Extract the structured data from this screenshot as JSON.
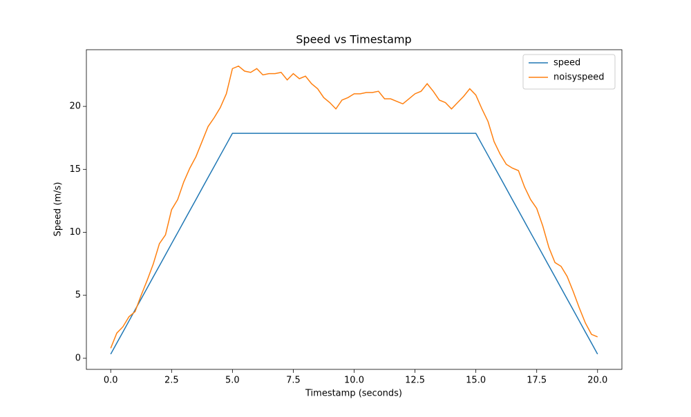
{
  "chart_data": {
    "type": "line",
    "title": "Speed vs Timestamp",
    "xlabel": "Timestamp (seconds)",
    "ylabel": "Speed (m/s)",
    "x": [
      0,
      0.25,
      0.5,
      0.75,
      1,
      1.25,
      1.5,
      1.75,
      2,
      2.25,
      2.5,
      2.75,
      3,
      3.25,
      3.5,
      3.75,
      4,
      4.25,
      4.5,
      4.75,
      5,
      5.25,
      5.5,
      5.75,
      6,
      6.25,
      6.5,
      6.75,
      7,
      7.25,
      7.5,
      7.75,
      8,
      8.25,
      8.5,
      8.75,
      9,
      9.25,
      9.5,
      9.75,
      10,
      10.25,
      10.5,
      10.75,
      11,
      11.25,
      11.5,
      11.75,
      12,
      12.25,
      12.5,
      12.75,
      13,
      13.25,
      13.5,
      13.75,
      14,
      14.25,
      14.5,
      14.75,
      15,
      15.25,
      15.5,
      15.75,
      16,
      16.25,
      16.5,
      16.75,
      17,
      17.25,
      17.5,
      17.75,
      18,
      18.25,
      18.5,
      18.75,
      19,
      19.25,
      19.5,
      19.75,
      20
    ],
    "series": [
      {
        "name": "speed",
        "color": "#1f77b4",
        "values": [
          0.33,
          1.21,
          2.08,
          2.96,
          3.84,
          4.71,
          5.59,
          6.47,
          7.34,
          8.22,
          9.1,
          9.97,
          10.85,
          11.73,
          12.6,
          13.48,
          14.36,
          15.23,
          16.11,
          16.98,
          17.86,
          17.86,
          17.86,
          17.86,
          17.86,
          17.86,
          17.86,
          17.86,
          17.86,
          17.86,
          17.86,
          17.86,
          17.86,
          17.86,
          17.86,
          17.86,
          17.86,
          17.86,
          17.86,
          17.86,
          17.86,
          17.86,
          17.86,
          17.86,
          17.86,
          17.86,
          17.86,
          17.86,
          17.86,
          17.86,
          17.86,
          17.86,
          17.86,
          17.86,
          17.86,
          17.86,
          17.86,
          17.86,
          17.86,
          17.86,
          17.86,
          16.98,
          16.11,
          15.23,
          14.36,
          13.48,
          12.6,
          11.73,
          10.85,
          9.97,
          9.1,
          8.22,
          7.34,
          6.47,
          5.59,
          4.71,
          3.84,
          2.96,
          2.08,
          1.21,
          0.33
        ]
      },
      {
        "name": "noisyspeed",
        "color": "#ff7f0e",
        "values": [
          0.8,
          2.0,
          2.5,
          3.3,
          3.7,
          5.0,
          6.2,
          7.5,
          9.1,
          9.8,
          11.8,
          12.6,
          14.0,
          15.1,
          16.0,
          17.2,
          18.4,
          19.1,
          19.9,
          21.0,
          23.0,
          23.2,
          22.8,
          22.7,
          23.0,
          22.5,
          22.6,
          22.6,
          22.7,
          22.1,
          22.6,
          22.2,
          22.4,
          21.8,
          21.4,
          20.7,
          20.3,
          19.8,
          20.5,
          20.7,
          21.0,
          21.0,
          21.1,
          21.1,
          21.2,
          20.6,
          20.6,
          20.4,
          20.2,
          20.6,
          21.0,
          21.2,
          21.8,
          21.2,
          20.5,
          20.3,
          19.8,
          20.3,
          20.8,
          21.4,
          20.9,
          19.8,
          18.8,
          17.2,
          16.2,
          15.4,
          15.1,
          14.9,
          13.6,
          12.6,
          11.9,
          10.5,
          8.8,
          7.6,
          7.3,
          6.5,
          5.3,
          4.0,
          2.8,
          1.9,
          1.7
        ]
      }
    ],
    "xlim": [
      -1,
      21
    ],
    "ylim": [
      -0.88,
      24.5
    ],
    "xticks": [
      {
        "value": 0,
        "label": "0.0"
      },
      {
        "value": 2.5,
        "label": "2.5"
      },
      {
        "value": 5,
        "label": "5.0"
      },
      {
        "value": 7.5,
        "label": "7.5"
      },
      {
        "value": 10,
        "label": "10.0"
      },
      {
        "value": 12.5,
        "label": "12.5"
      },
      {
        "value": 15,
        "label": "15.0"
      },
      {
        "value": 17.5,
        "label": "17.5"
      },
      {
        "value": 20,
        "label": "20.0"
      }
    ],
    "yticks": [
      0,
      5,
      10,
      15,
      20
    ],
    "legend": "upper right",
    "grid": false
  }
}
